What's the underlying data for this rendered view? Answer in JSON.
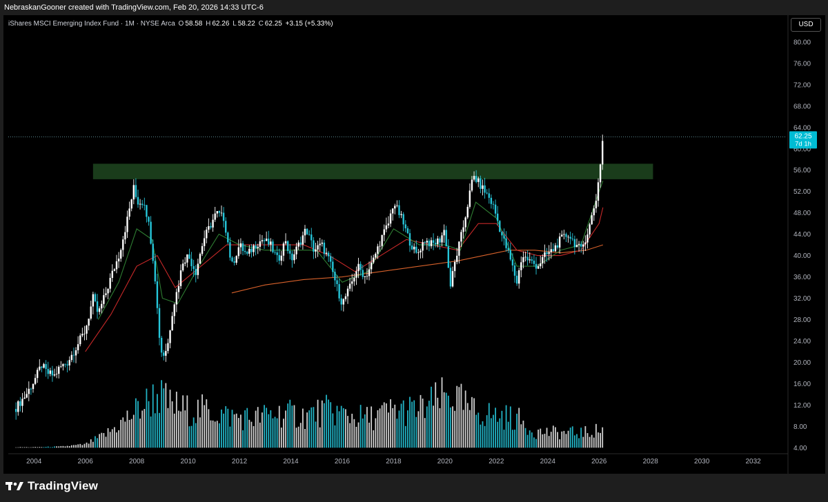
{
  "header": {
    "attribution": "NebraskanGooner created with TradingView.com, Feb 20, 2026 14:33 UTC-6"
  },
  "legend": {
    "symbol": "iShares MSCI Emerging Index Fund · 1M · NYSE Arca",
    "open_label": "O",
    "open": "58.58",
    "high_label": "H",
    "high": "62.26",
    "low_label": "L",
    "low": "58.22",
    "close_label": "C",
    "close": "62.25",
    "change": "+3.15 (+5.33%)"
  },
  "currency_button": "USD",
  "price_tag": {
    "price": "62.25",
    "countdown": "7d 1h"
  },
  "footer": {
    "brand": "TradingView"
  },
  "colors": {
    "up": "#ffffff",
    "down": "#26c6da",
    "ema_fast": "#2e7d32",
    "ema_mid": "#c62828",
    "sma_long": "#d9622b",
    "zone": "#1e4620",
    "price_tag": "#00bcd4"
  },
  "chart_data": {
    "type": "candlestick",
    "x_ticks": [
      "2004",
      "2006",
      "2008",
      "2010",
      "2012",
      "2014",
      "2016",
      "2018",
      "2020",
      "2022",
      "2024",
      "2026",
      "2028",
      "2030",
      "2032"
    ],
    "y_ticks": [
      "80.00",
      "76.00",
      "72.00",
      "68.00",
      "64.00",
      "60.00",
      "56.00",
      "52.00",
      "48.00",
      "44.00",
      "40.00",
      "36.00",
      "32.00",
      "28.00",
      "24.00",
      "20.00",
      "16.00",
      "12.00",
      "8.00",
      "4.00"
    ],
    "ylim": [
      3,
      84
    ],
    "xlim": [
      2003.0,
      2033.3
    ],
    "resistance_zone": {
      "x": [
        2006.3,
        2028.1
      ],
      "y": [
        54.3,
        57.2
      ]
    },
    "price_path": [
      [
        2003.3,
        11.5
      ],
      [
        2003.7,
        14
      ],
      [
        2004.0,
        16.5
      ],
      [
        2004.3,
        19.5
      ],
      [
        2004.5,
        18
      ],
      [
        2004.8,
        17.5
      ],
      [
        2005.0,
        19
      ],
      [
        2005.3,
        20
      ],
      [
        2005.6,
        22.5
      ],
      [
        2006.0,
        26
      ],
      [
        2006.3,
        32
      ],
      [
        2006.5,
        29
      ],
      [
        2006.8,
        33
      ],
      [
        2007.0,
        36
      ],
      [
        2007.3,
        40
      ],
      [
        2007.6,
        46
      ],
      [
        2007.9,
        53
      ],
      [
        2008.0,
        50
      ],
      [
        2008.3,
        50
      ],
      [
        2008.5,
        45
      ],
      [
        2008.7,
        37
      ],
      [
        2008.8,
        30
      ],
      [
        2008.9,
        24
      ],
      [
        2009.0,
        21
      ],
      [
        2009.2,
        23
      ],
      [
        2009.4,
        30
      ],
      [
        2009.6,
        34
      ],
      [
        2009.8,
        39
      ],
      [
        2010.0,
        40
      ],
      [
        2010.3,
        37
      ],
      [
        2010.6,
        43
      ],
      [
        2010.9,
        46
      ],
      [
        2011.1,
        48
      ],
      [
        2011.4,
        47
      ],
      [
        2011.7,
        38
      ],
      [
        2012.0,
        42
      ],
      [
        2012.3,
        40
      ],
      [
        2012.6,
        42
      ],
      [
        2012.9,
        43
      ],
      [
        2013.2,
        42
      ],
      [
        2013.5,
        39
      ],
      [
        2013.8,
        43
      ],
      [
        2014.0,
        39
      ],
      [
        2014.3,
        42
      ],
      [
        2014.6,
        45
      ],
      [
        2014.9,
        41
      ],
      [
        2015.2,
        42
      ],
      [
        2015.5,
        39
      ],
      [
        2015.8,
        34
      ],
      [
        2016.0,
        31
      ],
      [
        2016.3,
        34
      ],
      [
        2016.6,
        38
      ],
      [
        2016.9,
        36
      ],
      [
        2017.2,
        39
      ],
      [
        2017.5,
        43
      ],
      [
        2017.8,
        46
      ],
      [
        2018.0,
        50
      ],
      [
        2018.3,
        47
      ],
      [
        2018.6,
        43
      ],
      [
        2018.9,
        40
      ],
      [
        2019.2,
        43
      ],
      [
        2019.5,
        42
      ],
      [
        2019.8,
        43
      ],
      [
        2020.0,
        45
      ],
      [
        2020.2,
        34
      ],
      [
        2020.4,
        39
      ],
      [
        2020.7,
        45
      ],
      [
        2020.9,
        50
      ],
      [
        2021.1,
        55
      ],
      [
        2021.4,
        53
      ],
      [
        2021.7,
        51
      ],
      [
        2021.9,
        49
      ],
      [
        2022.2,
        44
      ],
      [
        2022.5,
        40
      ],
      [
        2022.8,
        35
      ],
      [
        2023.0,
        40
      ],
      [
        2023.3,
        39
      ],
      [
        2023.6,
        38
      ],
      [
        2023.9,
        40
      ],
      [
        2024.2,
        41
      ],
      [
        2024.5,
        43
      ],
      [
        2024.8,
        44
      ],
      [
        2025.1,
        42
      ],
      [
        2025.3,
        41
      ],
      [
        2025.6,
        45
      ],
      [
        2025.9,
        51
      ],
      [
        2026.0,
        55
      ],
      [
        2026.15,
        62.25
      ]
    ],
    "ema_fast_path": [
      [
        2006.5,
        28
      ],
      [
        2007.3,
        35
      ],
      [
        2008.0,
        45
      ],
      [
        2008.6,
        43
      ],
      [
        2009.0,
        32
      ],
      [
        2009.6,
        31
      ],
      [
        2010.3,
        37
      ],
      [
        2011.2,
        44
      ],
      [
        2012.0,
        42
      ],
      [
        2013.0,
        41
      ],
      [
        2014.0,
        41
      ],
      [
        2015.0,
        41
      ],
      [
        2016.0,
        35
      ],
      [
        2017.0,
        37
      ],
      [
        2018.0,
        45
      ],
      [
        2019.0,
        42
      ],
      [
        2020.0,
        42
      ],
      [
        2020.6,
        41
      ],
      [
        2021.2,
        50
      ],
      [
        2022.0,
        47
      ],
      [
        2022.8,
        38
      ],
      [
        2023.6,
        38
      ],
      [
        2024.5,
        41
      ],
      [
        2025.3,
        42
      ],
      [
        2026.0,
        52
      ],
      [
        2026.15,
        54
      ]
    ],
    "ema_mid_path": [
      [
        2006.0,
        22
      ],
      [
        2007.0,
        29
      ],
      [
        2008.0,
        38
      ],
      [
        2008.8,
        40
      ],
      [
        2009.5,
        34
      ],
      [
        2010.5,
        38
      ],
      [
        2011.5,
        42
      ],
      [
        2012.5,
        42
      ],
      [
        2013.5,
        42
      ],
      [
        2014.5,
        42
      ],
      [
        2015.5,
        40
      ],
      [
        2016.5,
        37
      ],
      [
        2017.5,
        40
      ],
      [
        2018.5,
        43
      ],
      [
        2019.5,
        42
      ],
      [
        2020.5,
        41
      ],
      [
        2021.3,
        46
      ],
      [
        2022.0,
        46
      ],
      [
        2022.8,
        41
      ],
      [
        2023.6,
        40
      ],
      [
        2024.5,
        40
      ],
      [
        2025.3,
        41
      ],
      [
        2026.0,
        46
      ],
      [
        2026.15,
        49
      ]
    ],
    "sma_long_path": [
      [
        2011.7,
        33
      ],
      [
        2013.0,
        34.5
      ],
      [
        2014.5,
        35.5
      ],
      [
        2016.0,
        36
      ],
      [
        2017.5,
        37
      ],
      [
        2019.0,
        38
      ],
      [
        2020.5,
        39
      ],
      [
        2021.5,
        40
      ],
      [
        2022.5,
        41
      ],
      [
        2023.5,
        41
      ],
      [
        2024.5,
        40.5
      ],
      [
        2025.5,
        41
      ],
      [
        2026.15,
        42
      ]
    ],
    "volume_path": [
      [
        2003.3,
        4.1
      ],
      [
        2004.0,
        4.1
      ],
      [
        2005.0,
        4.2
      ],
      [
        2006.0,
        4.6
      ],
      [
        2006.8,
        6.5
      ],
      [
        2007.5,
        9
      ],
      [
        2008.0,
        11
      ],
      [
        2008.8,
        14
      ],
      [
        2009.3,
        12
      ],
      [
        2010.0,
        11
      ],
      [
        2010.8,
        11
      ],
      [
        2011.5,
        10
      ],
      [
        2012.5,
        9.5
      ],
      [
        2013.5,
        10.5
      ],
      [
        2014.5,
        10
      ],
      [
        2015.5,
        11
      ],
      [
        2016.3,
        10
      ],
      [
        2017.0,
        9.5
      ],
      [
        2018.0,
        11
      ],
      [
        2019.0,
        11
      ],
      [
        2020.2,
        14
      ],
      [
        2021.0,
        11
      ],
      [
        2022.0,
        10
      ],
      [
        2022.8,
        9.5
      ],
      [
        2023.5,
        7
      ],
      [
        2024.5,
        6.8
      ],
      [
        2025.5,
        6.8
      ],
      [
        2026.15,
        7.5
      ]
    ]
  }
}
